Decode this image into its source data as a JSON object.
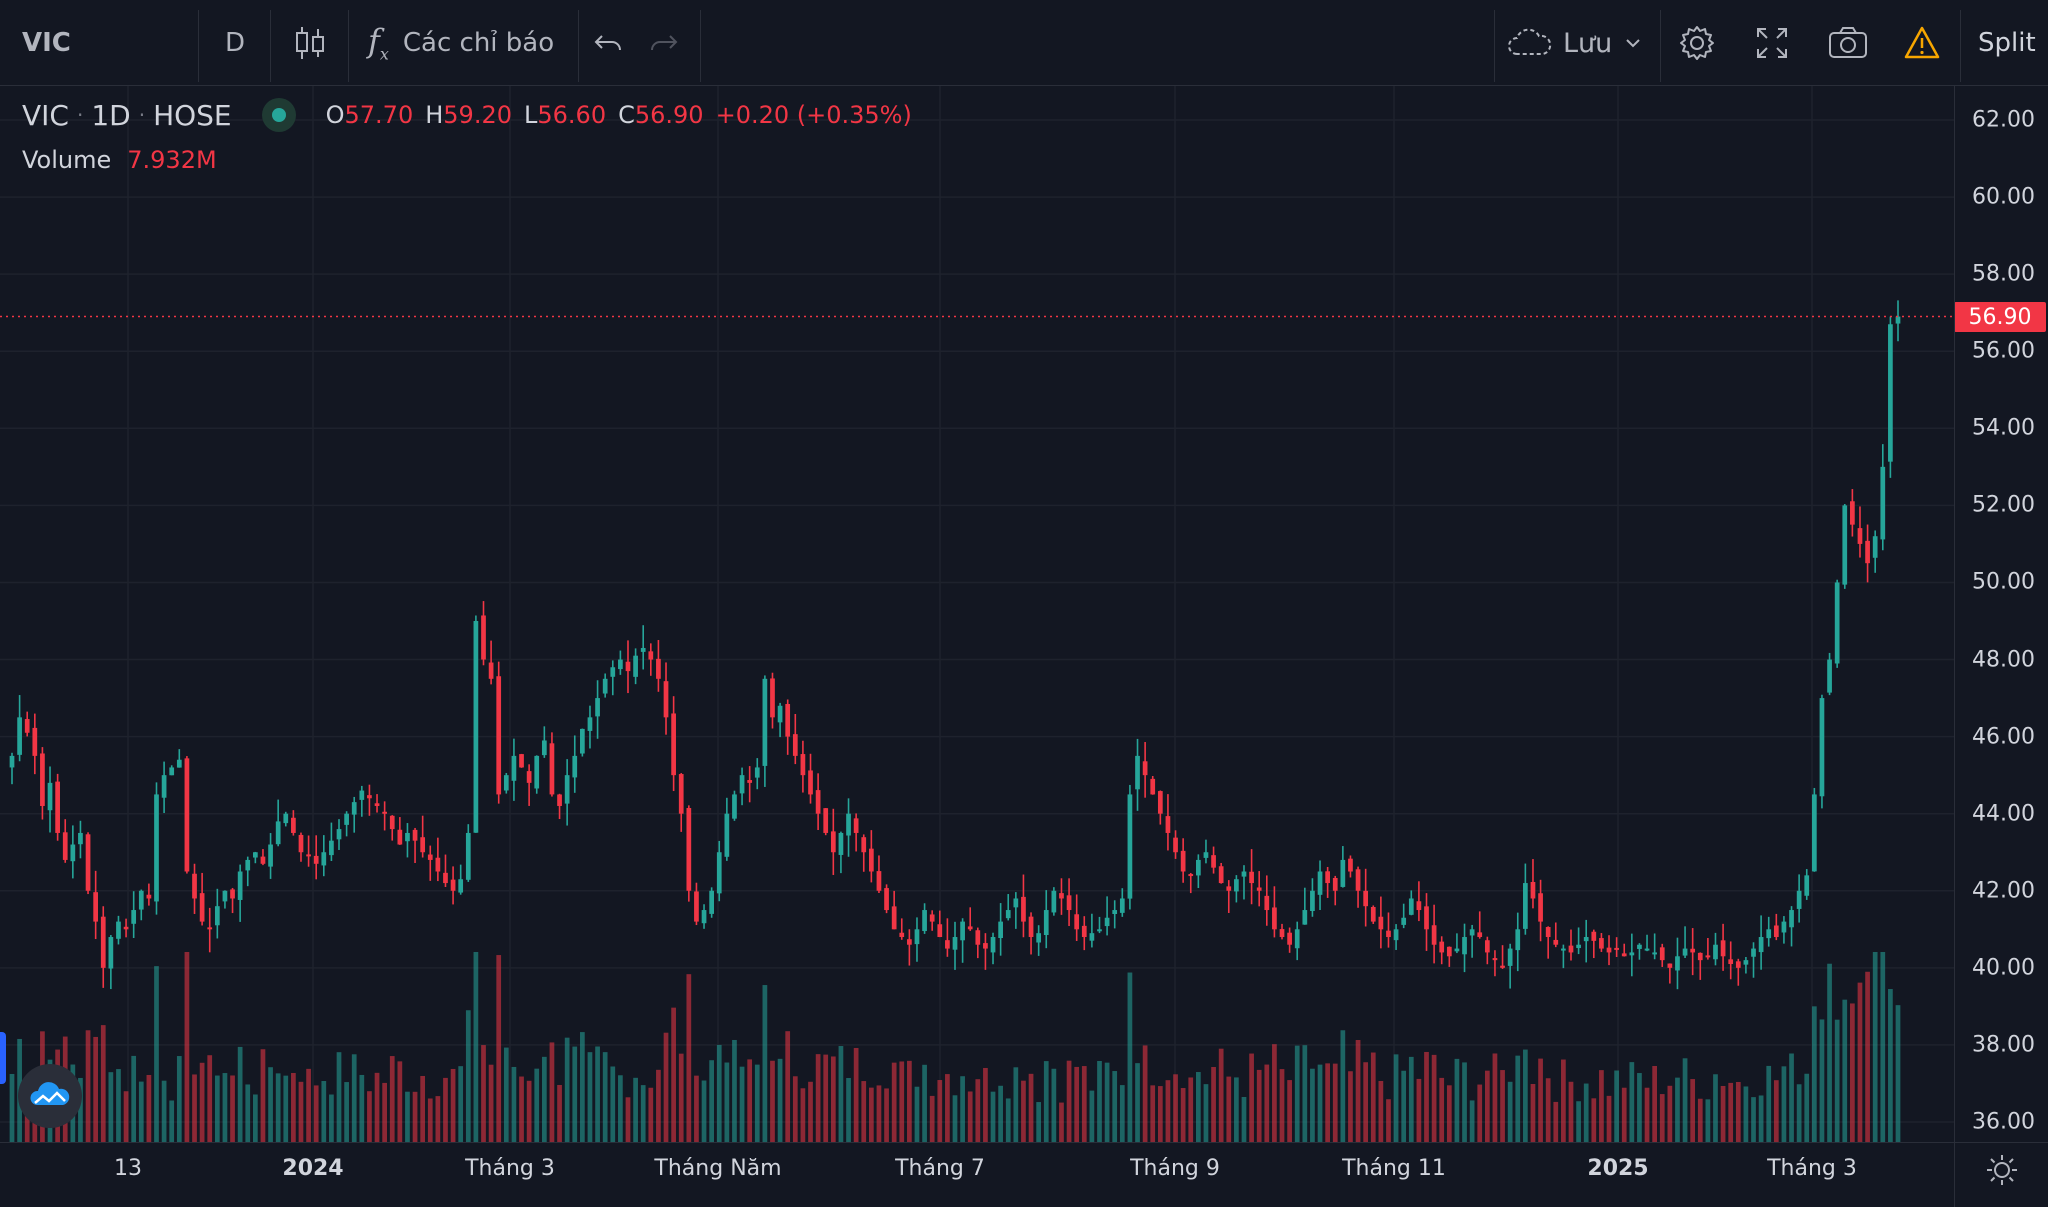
{
  "toolbar": {
    "symbol": "VIC",
    "interval": "D",
    "indicators_label": "Các chỉ báo",
    "save_label": "Lưu",
    "split_label": "Split"
  },
  "legend": {
    "symbol": "VIC",
    "interval": "1D",
    "exchange": "HOSE",
    "sep": "·",
    "o_key": "O",
    "o_val": "57.70",
    "h_key": "H",
    "h_val": "59.20",
    "l_key": "L",
    "l_val": "56.60",
    "c_key": "C",
    "c_val": "56.90",
    "change": "+0.20 (+0.35%)",
    "volume_label": "Volume",
    "volume_val": "7.932M"
  },
  "price_axis": {
    "labels": [
      "62.00",
      "60.00",
      "58.00",
      "56.00",
      "54.00",
      "52.00",
      "50.00",
      "48.00",
      "46.00",
      "44.00",
      "42.00",
      "40.00",
      "38.00",
      "36.00"
    ],
    "last_price": "56.90"
  },
  "time_axis": {
    "labels": [
      "13",
      "2024",
      "Tháng 3",
      "Tháng Năm",
      "Tháng 7",
      "Tháng 9",
      "Tháng 11",
      "2025",
      "Tháng 3"
    ],
    "bold": [
      false,
      true,
      false,
      false,
      false,
      false,
      false,
      true,
      false
    ]
  },
  "colors": {
    "up": "#26a69a",
    "down": "#f23645",
    "background": "#131722",
    "grid": "#1e222d",
    "accent": "#2962ff",
    "warning": "#f7a600"
  },
  "chart_data": {
    "type": "candlestick",
    "price_range": [
      36,
      62
    ],
    "last_close": 56.9,
    "closes": [
      45.5,
      46.5,
      46.1,
      45.5,
      44.2,
      44.8,
      43.5,
      42.8,
      43.2,
      43.5,
      42.0,
      41.2,
      40.0,
      40.8,
      41.2,
      41.0,
      41.5,
      42.0,
      41.8,
      44.5,
      45.0,
      45.2,
      45.4,
      42.5,
      41.8,
      41.2,
      41.0,
      41.6,
      42.0,
      41.8,
      42.5,
      42.8,
      43.0,
      42.7,
      43.2,
      43.8,
      44.0,
      43.5,
      43.0,
      42.9,
      42.7,
      43.0,
      43.3,
      43.6,
      44.0,
      44.3,
      44.6,
      44.4,
      44.2,
      44.0,
      43.6,
      43.2,
      43.5,
      43.3,
      43.0,
      42.8,
      42.5,
      42.2,
      42.0,
      42.3,
      43.5,
      49.0,
      48.0,
      47.5,
      44.5,
      45.0,
      45.5,
      45.2,
      44.8,
      45.5,
      45.9,
      44.5,
      44.2,
      45.0,
      45.5,
      46.2,
      46.5,
      47.0,
      47.5,
      47.8,
      48.0,
      47.7,
      48.1,
      48.3,
      48.0,
      47.5,
      46.5,
      45.0,
      44.0,
      42.0,
      41.2,
      41.5,
      42.0,
      43.0,
      44.0,
      44.5,
      45.0,
      44.8,
      45.2,
      47.5,
      46.5,
      46.8,
      46.0,
      45.5,
      45.0,
      44.5,
      44.0,
      43.5,
      43.0,
      43.5,
      44.0,
      43.5,
      43.0,
      42.5,
      42.0,
      41.5,
      41.0,
      40.8,
      40.6,
      41.0,
      41.5,
      41.2,
      40.8,
      40.5,
      40.8,
      41.2,
      41.0,
      40.6,
      40.5,
      40.8,
      41.2,
      41.5,
      41.8,
      41.2,
      40.8,
      40.9,
      41.5,
      42.0,
      41.8,
      41.5,
      41.0,
      40.8,
      40.9,
      41.0,
      41.3,
      41.5,
      41.8,
      44.5,
      45.5,
      45.0,
      44.5,
      44.0,
      43.5,
      43.0,
      42.5,
      42.4,
      42.8,
      43.0,
      42.6,
      42.2,
      42.0,
      42.3,
      42.5,
      42.2,
      42.0,
      41.5,
      41.0,
      40.8,
      40.6,
      41.0,
      41.5,
      42.0,
      42.5,
      42.2,
      42.0,
      42.8,
      42.5,
      42.0,
      41.6,
      41.2,
      41.0,
      40.8,
      41.0,
      41.3,
      41.8,
      41.5,
      41.0,
      40.6,
      40.4,
      40.3,
      40.5,
      40.8,
      41.0,
      40.8,
      40.4,
      40.2,
      40.0,
      40.5,
      41.0,
      42.2,
      41.8,
      41.2,
      40.8,
      40.6,
      40.5,
      40.4,
      40.6,
      40.8,
      40.7,
      40.5,
      40.4,
      40.5,
      40.3,
      40.4,
      40.6,
      40.5,
      40.4,
      40.2,
      40.0,
      40.3,
      40.5,
      40.4,
      40.2,
      40.3,
      40.6,
      40.3,
      40.1,
      40.0,
      40.2,
      40.5,
      40.8,
      41.0,
      40.8,
      41.2,
      41.5,
      42.0,
      42.4,
      44.5,
      47.0,
      48.0,
      50.0,
      52.0,
      51.5,
      51.0,
      50.5,
      51.2,
      53.0,
      56.7,
      56.9
    ],
    "volume_unit": "M",
    "last_volume": 7.932
  }
}
